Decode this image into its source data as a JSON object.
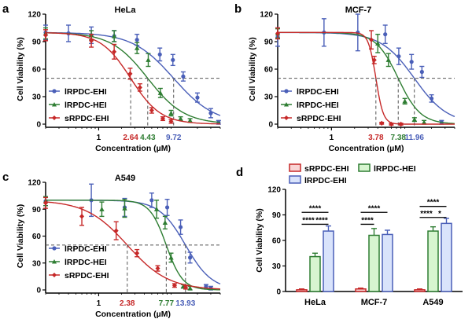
{
  "colors": {
    "blue": "#4a5fb8",
    "green": "#2e7d32",
    "red": "#c62828",
    "axis": "#000000",
    "ref": "#555555"
  },
  "chart_data": [
    {
      "id": "a",
      "type": "line",
      "panel_letter": "a",
      "title": "HeLa",
      "xlabel": "Concentration (µM)",
      "ylabel": "Cell Viability (%)",
      "xscale": "log",
      "xlim": [
        0.2,
        40
      ],
      "ylim": [
        0,
        120
      ],
      "yticks": [
        "0",
        "30",
        "60",
        "90",
        "120"
      ],
      "xtick_labels": [
        "1"
      ],
      "hline_y": 50,
      "legend_position": "bottom-left",
      "series": [
        {
          "name": "lRPDC-EHI",
          "color": "blue",
          "ic50": 9.72,
          "ic50_label": "9.72",
          "hill": 1.6,
          "points": [
            {
              "x": 0.2,
              "y": 100,
              "err": 8
            },
            {
              "x": 0.4,
              "y": 99,
              "err": 9
            },
            {
              "x": 0.8,
              "y": 97,
              "err": 9
            },
            {
              "x": 1.6,
              "y": 96,
              "err": 6
            },
            {
              "x": 3.2,
              "y": 92,
              "err": 6
            },
            {
              "x": 6.4,
              "y": 76,
              "err": 7
            },
            {
              "x": 9.5,
              "y": 70,
              "err": 6
            },
            {
              "x": 13,
              "y": 52,
              "err": 5
            },
            {
              "x": 20,
              "y": 29,
              "err": 5
            },
            {
              "x": 30,
              "y": 12,
              "err": 5
            },
            {
              "x": 38,
              "y": 2,
              "err": 2
            }
          ]
        },
        {
          "name": "lRPDC-HEI",
          "color": "green",
          "ic50": 4.43,
          "ic50_label": "4.43",
          "hill": 1.8,
          "points": [
            {
              "x": 0.2,
              "y": 99,
              "err": 6
            },
            {
              "x": 0.8,
              "y": 97,
              "err": 5
            },
            {
              "x": 1.6,
              "y": 96,
              "err": 6
            },
            {
              "x": 3.2,
              "y": 83,
              "err": 6
            },
            {
              "x": 4.5,
              "y": 70,
              "err": 7
            },
            {
              "x": 6.5,
              "y": 34,
              "err": 5
            },
            {
              "x": 9,
              "y": 12,
              "err": 3
            },
            {
              "x": 12,
              "y": 6,
              "err": 2
            },
            {
              "x": 16,
              "y": 4,
              "err": 2
            }
          ]
        },
        {
          "name": "sRPDC-EHI",
          "color": "red",
          "ic50": 2.64,
          "ic50_label": "2.64",
          "hill": 2.2,
          "points": [
            {
              "x": 0.2,
              "y": 97,
              "err": 6
            },
            {
              "x": 0.8,
              "y": 91,
              "err": 7
            },
            {
              "x": 1.6,
              "y": 79,
              "err": 8
            },
            {
              "x": 2.6,
              "y": 55,
              "err": 6
            },
            {
              "x": 3.5,
              "y": 40,
              "err": 4
            },
            {
              "x": 5,
              "y": 15,
              "err": 3
            },
            {
              "x": 7,
              "y": 6,
              "err": 2
            },
            {
              "x": 9,
              "y": 3,
              "err": 2
            }
          ]
        }
      ]
    },
    {
      "id": "b",
      "type": "line",
      "panel_letter": "b",
      "title": "MCF-7",
      "xlabel": "Concentration (µM)",
      "ylabel": "Cell Viability (%)",
      "xscale": "log",
      "xlim": [
        0.2,
        40
      ],
      "ylim": [
        0,
        120
      ],
      "yticks": [
        "0",
        "30",
        "60",
        "90",
        "120"
      ],
      "xtick_labels": [
        "1"
      ],
      "hline_y": 50,
      "legend_position": "bottom-left",
      "series": [
        {
          "name": "lRPDC-EHI",
          "color": "blue",
          "ic50": 11.96,
          "ic50_label": "11.96",
          "hill": 2.0,
          "points": [
            {
              "x": 0.2,
              "y": 95,
              "err": 10
            },
            {
              "x": 0.8,
              "y": 100,
              "err": 15
            },
            {
              "x": 2.2,
              "y": 100,
              "err": 20
            },
            {
              "x": 5,
              "y": 98,
              "err": 10
            },
            {
              "x": 7.5,
              "y": 74,
              "err": 9
            },
            {
              "x": 11,
              "y": 68,
              "err": 8
            },
            {
              "x": 15,
              "y": 57,
              "err": 6
            },
            {
              "x": 20,
              "y": 28,
              "err": 4
            },
            {
              "x": 27,
              "y": 2,
              "err": 2
            }
          ]
        },
        {
          "name": "lRPDC-HEI",
          "color": "green",
          "ic50": 7.38,
          "ic50_label": "7.38",
          "hill": 3.0,
          "points": [
            {
              "x": 0.2,
              "y": 99,
              "err": 5
            },
            {
              "x": 4,
              "y": 88,
              "err": 10
            },
            {
              "x": 5.5,
              "y": 70,
              "err": 7
            },
            {
              "x": 9,
              "y": 25,
              "err": 3
            },
            {
              "x": 12,
              "y": 5,
              "err": 2
            },
            {
              "x": 16,
              "y": 2,
              "err": 2
            }
          ]
        },
        {
          "name": "sRPDC-EHI",
          "color": "red",
          "ic50": 3.78,
          "ic50_label": "3.78",
          "hill": 9.0,
          "points": [
            {
              "x": 0.2,
              "y": 99,
              "err": 6
            },
            {
              "x": 3.3,
              "y": 92,
              "err": 10
            },
            {
              "x": 3.6,
              "y": 70,
              "err": 4
            },
            {
              "x": 4.5,
              "y": 1,
              "err": 1
            },
            {
              "x": 6,
              "y": 0,
              "err": 1
            },
            {
              "x": 8,
              "y": 0,
              "err": 1
            }
          ]
        }
      ]
    },
    {
      "id": "c",
      "type": "line",
      "panel_letter": "c",
      "title": "A549",
      "xlabel": "Concentration (µM)",
      "ylabel": "Cell Viability (%)",
      "xscale": "log",
      "xlim": [
        0.2,
        40
      ],
      "ylim": [
        0,
        120
      ],
      "yticks": [
        "0",
        "30",
        "60",
        "90",
        "120"
      ],
      "xtick_labels": [
        "1"
      ],
      "hline_y": 50,
      "legend_position": "bottom-left",
      "series": [
        {
          "name": "lRPDC-EHI",
          "color": "blue",
          "ic50": 13.93,
          "ic50_label": "13.93",
          "hill": 2.5,
          "points": [
            {
              "x": 0.2,
              "y": 99,
              "err": 5
            },
            {
              "x": 0.8,
              "y": 100,
              "err": 18
            },
            {
              "x": 2.2,
              "y": 92,
              "err": 10
            },
            {
              "x": 5,
              "y": 100,
              "err": 8
            },
            {
              "x": 8,
              "y": 92,
              "err": 9
            },
            {
              "x": 12,
              "y": 70,
              "err": 8
            },
            {
              "x": 16,
              "y": 36,
              "err": 6
            },
            {
              "x": 26,
              "y": 4,
              "err": 2
            },
            {
              "x": 30,
              "y": 2,
              "err": 2
            }
          ]
        },
        {
          "name": "lRPDC-HEI",
          "color": "green",
          "ic50": 7.77,
          "ic50_label": "7.77",
          "hill": 4.0,
          "points": [
            {
              "x": 0.2,
              "y": 99,
              "err": 5
            },
            {
              "x": 1.1,
              "y": 90,
              "err": 8
            },
            {
              "x": 2.2,
              "y": 91,
              "err": 10
            },
            {
              "x": 5.8,
              "y": 90,
              "err": 10
            },
            {
              "x": 7.5,
              "y": 75,
              "err": 7
            },
            {
              "x": 9,
              "y": 36,
              "err": 5
            },
            {
              "x": 13,
              "y": 4,
              "err": 2
            },
            {
              "x": 16,
              "y": 2,
              "err": 2
            }
          ]
        },
        {
          "name": "sRPDC-EHI",
          "color": "red",
          "ic50": 2.38,
          "ic50_label": "2.38",
          "hill": 1.6,
          "points": [
            {
              "x": 0.2,
              "y": 97,
              "err": 6
            },
            {
              "x": 0.6,
              "y": 82,
              "err": 10
            },
            {
              "x": 1.7,
              "y": 66,
              "err": 10
            },
            {
              "x": 3.2,
              "y": 41,
              "err": 4
            },
            {
              "x": 6,
              "y": 24,
              "err": 3
            },
            {
              "x": 10,
              "y": 5,
              "err": 2
            },
            {
              "x": 14,
              "y": 3,
              "err": 2
            }
          ]
        }
      ]
    },
    {
      "id": "d",
      "type": "bar",
      "panel_letter": "d",
      "ylabel": "Cell Viability (%)",
      "ylim": [
        0,
        120
      ],
      "yticks": [
        "0",
        "30",
        "60",
        "90",
        "120"
      ],
      "categories": [
        "HeLa",
        "MCF-7",
        "A549"
      ],
      "legend_position": "top",
      "series": [
        {
          "name": "sRPDC-EHI",
          "color": "red",
          "fill": "#f9d5d5",
          "values": [
            2,
            3,
            2
          ],
          "errors": [
            1,
            1,
            1
          ]
        },
        {
          "name": "lRPDC-HEI",
          "color": "green",
          "fill": "#d7f5d0",
          "values": [
            41,
            66,
            71
          ],
          "errors": [
            4,
            8,
            5
          ]
        },
        {
          "name": "lRPDC-EHI",
          "color": "blue",
          "fill": "#d9e3fb",
          "values": [
            71,
            67,
            80
          ],
          "errors": [
            6,
            5,
            6
          ]
        }
      ],
      "significance": [
        {
          "cat": 0,
          "from": 0,
          "to": 2,
          "y": 93,
          "label": "****"
        },
        {
          "cat": 0,
          "from": 0,
          "to": 1,
          "y": 79,
          "label": "****"
        },
        {
          "cat": 0,
          "from": 1,
          "to": 2,
          "y": 79,
          "label": "****"
        },
        {
          "cat": 1,
          "from": 0,
          "to": 2,
          "y": 93,
          "label": "****"
        },
        {
          "cat": 1,
          "from": 0,
          "to": 1,
          "y": 79,
          "label": "****"
        },
        {
          "cat": 2,
          "from": 0,
          "to": 2,
          "y": 100,
          "label": "****"
        },
        {
          "cat": 2,
          "from": 0,
          "to": 1,
          "y": 87,
          "label": "****"
        },
        {
          "cat": 2,
          "from": 1,
          "to": 2,
          "y": 87,
          "label": "*"
        }
      ]
    }
  ]
}
